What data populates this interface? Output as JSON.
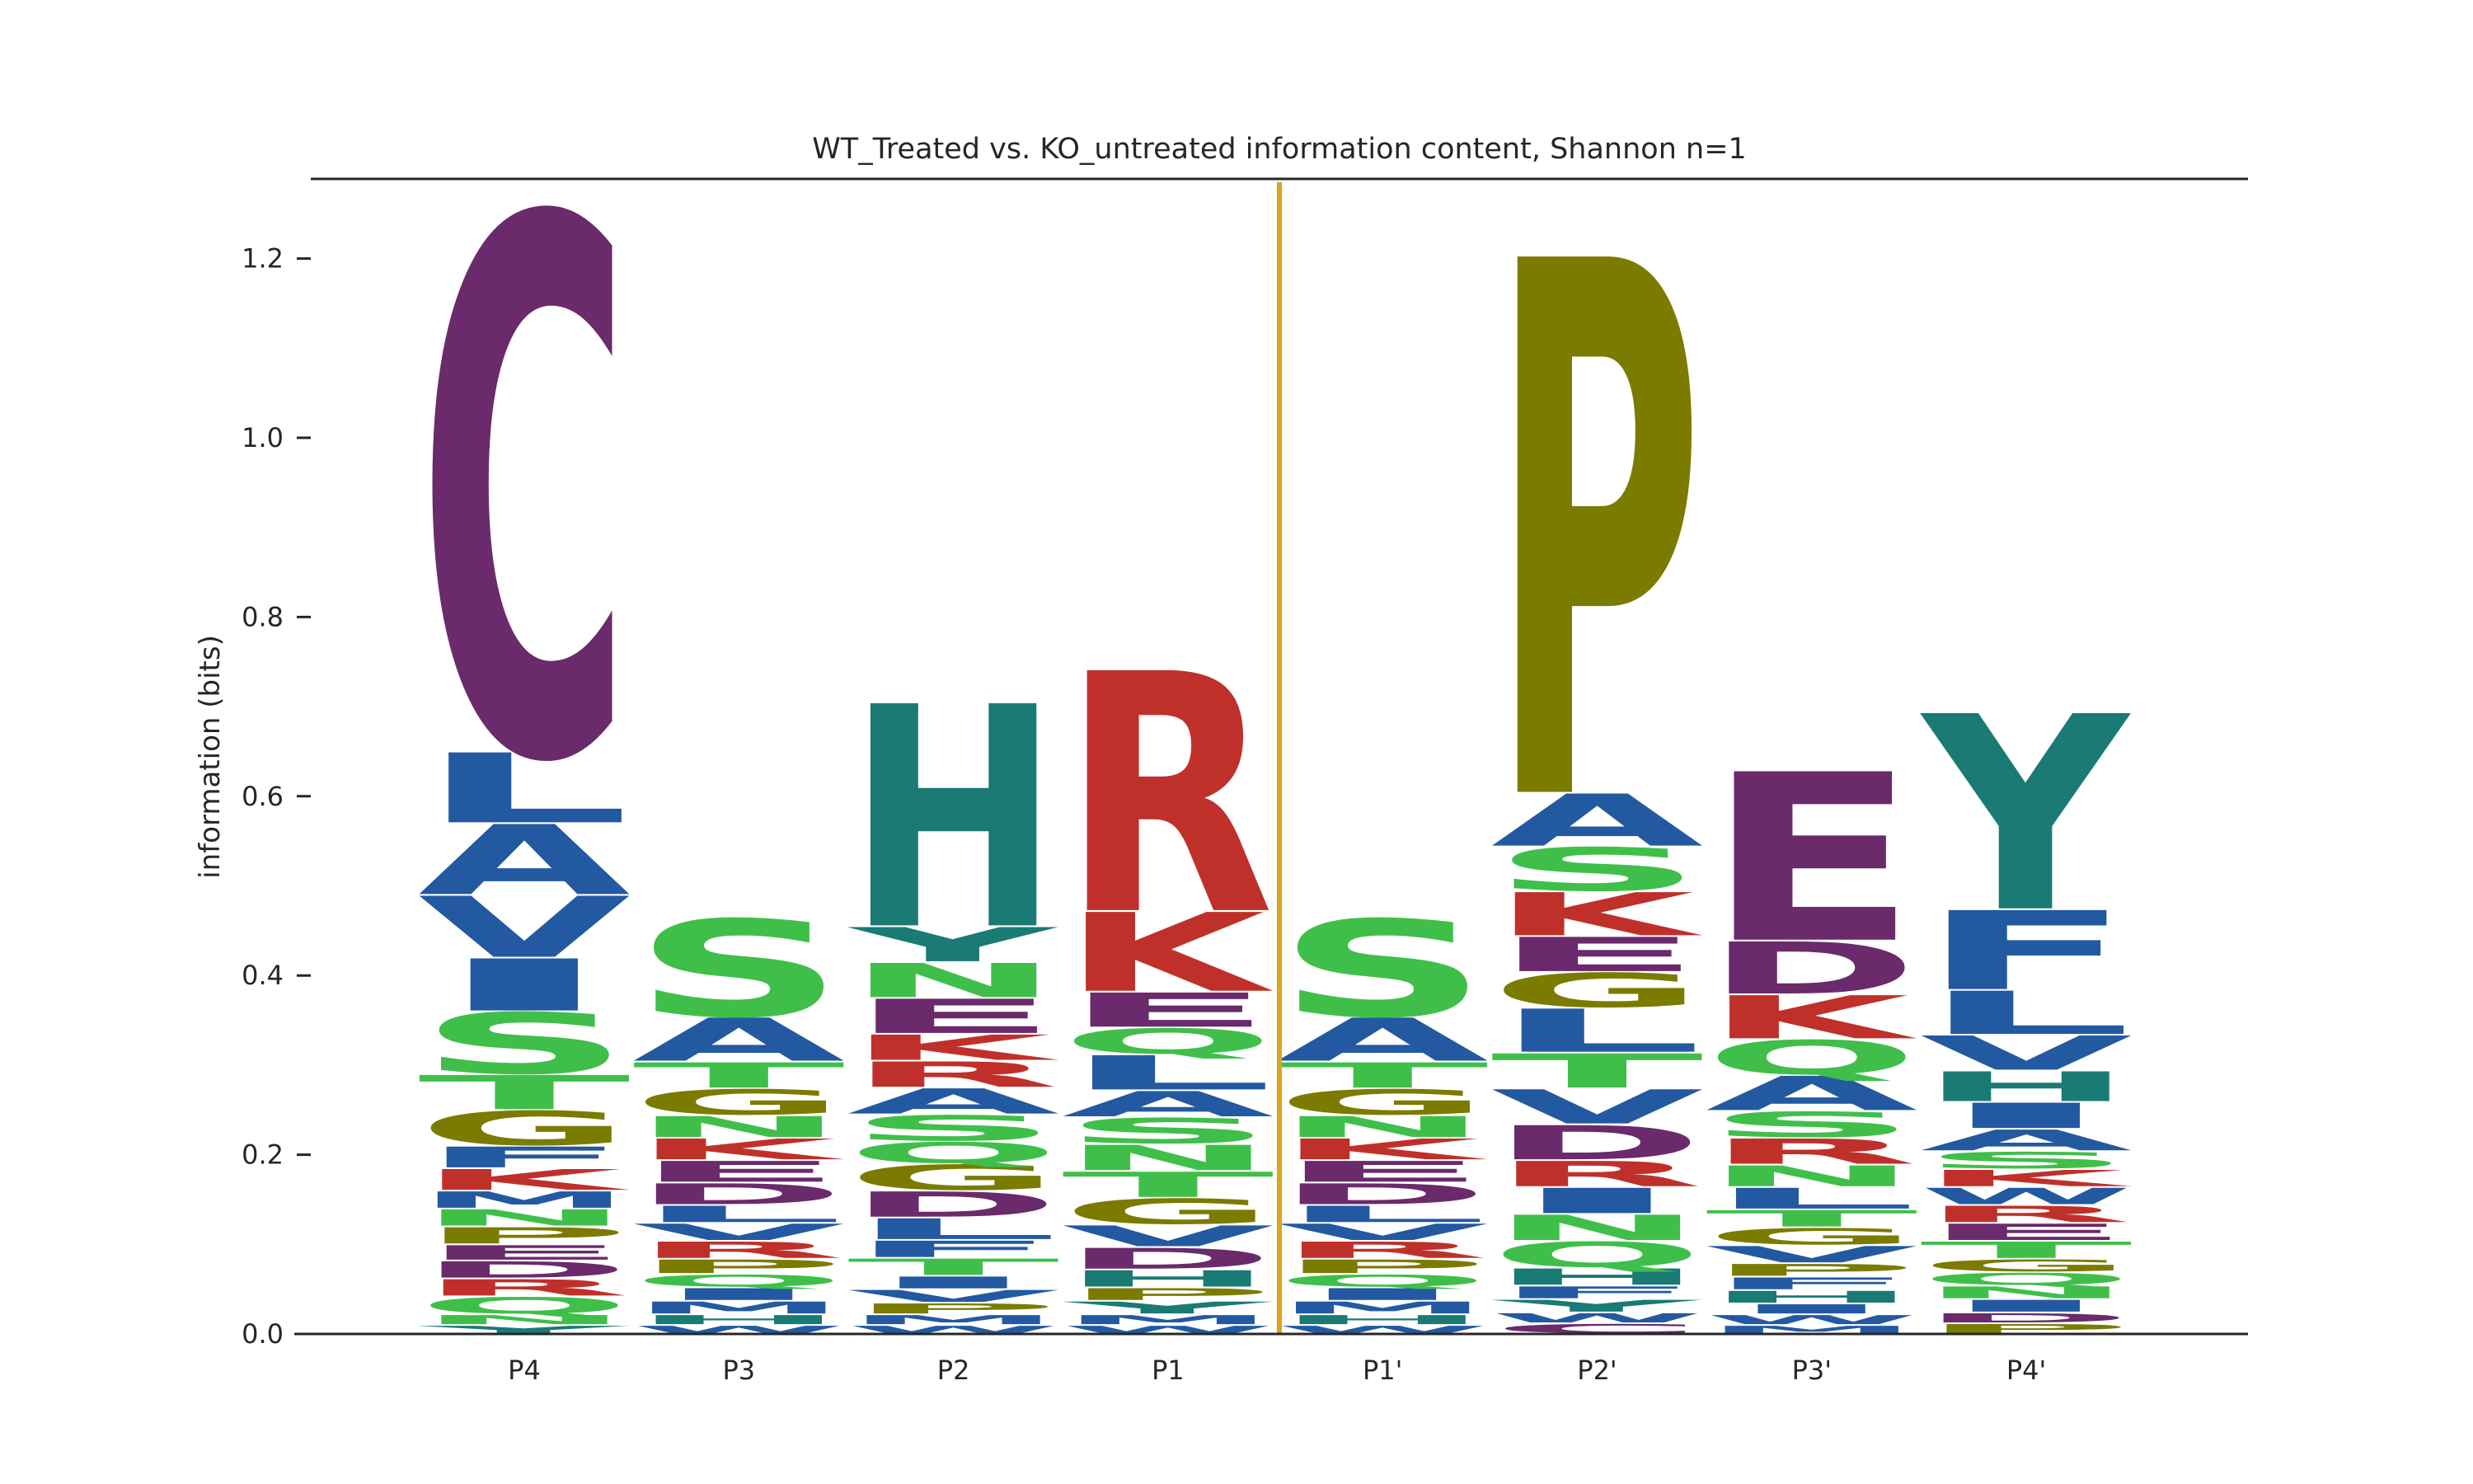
{
  "chart_data": {
    "type": "sequence-logo",
    "title": "WT_Treated vs. KO_untreated information content, Shannon n=1",
    "xlabel": "",
    "ylabel": "information (bits)",
    "ylim": [
      0,
      1.28
    ],
    "yticks": [
      "0.0",
      "0.2",
      "0.4",
      "0.6",
      "0.8",
      "1.0",
      "1.2"
    ],
    "ytick_values": [
      0,
      0.2,
      0.4,
      0.6,
      0.8,
      1.0,
      1.2
    ],
    "categories": [
      "P4",
      "P3",
      "P2",
      "P1",
      "P1'",
      "P2'",
      "P3'",
      "P4'"
    ],
    "cleavage_site_after": "P1",
    "grid": false,
    "colors": {
      "purple": "#6a2a6c",
      "blue": "#2359a1",
      "green": "#3fbf4a",
      "olive": "#7b7b00",
      "red": "#c0302a",
      "teal": "#1a7a74",
      "cleavage_line": "#daa520",
      "axis": "#262626"
    },
    "positions": [
      {
        "label": "P4",
        "letters": [
          {
            "aa": "Y",
            "bits": 0.01,
            "color": "teal"
          },
          {
            "aa": "N",
            "bits": 0.012,
            "color": "green"
          },
          {
            "aa": "Q",
            "bits": 0.02,
            "color": "green"
          },
          {
            "aa": "R",
            "bits": 0.02,
            "color": "red"
          },
          {
            "aa": "D",
            "bits": 0.02,
            "color": "purple"
          },
          {
            "aa": "E",
            "bits": 0.018,
            "color": "purple"
          },
          {
            "aa": "P",
            "bits": 0.02,
            "color": "olive"
          },
          {
            "aa": "N",
            "bits": 0.02,
            "color": "green"
          },
          {
            "aa": "M",
            "bits": 0.02,
            "color": "blue"
          },
          {
            "aa": "K",
            "bits": 0.025,
            "color": "red"
          },
          {
            "aa": "F",
            "bits": 0.025,
            "color": "blue"
          },
          {
            "aa": "G",
            "bits": 0.04,
            "color": "olive"
          },
          {
            "aa": "T",
            "bits": 0.04,
            "color": "green"
          },
          {
            "aa": "S",
            "bits": 0.07,
            "color": "green"
          },
          {
            "aa": "I",
            "bits": 0.06,
            "color": "blue"
          },
          {
            "aa": "V",
            "bits": 0.07,
            "color": "blue"
          },
          {
            "aa": "A",
            "bits": 0.08,
            "color": "blue"
          },
          {
            "aa": "L",
            "bits": 0.08,
            "color": "blue"
          },
          {
            "aa": "C",
            "bits": 0.6,
            "color": "purple"
          }
        ]
      },
      {
        "label": "P3",
        "letters": [
          {
            "aa": "W",
            "bits": 0.01,
            "color": "blue"
          },
          {
            "aa": "H",
            "bits": 0.012,
            "color": "teal"
          },
          {
            "aa": "M",
            "bits": 0.015,
            "color": "blue"
          },
          {
            "aa": "I",
            "bits": 0.015,
            "color": "blue"
          },
          {
            "aa": "Q",
            "bits": 0.015,
            "color": "green"
          },
          {
            "aa": "P",
            "bits": 0.017,
            "color": "olive"
          },
          {
            "aa": "R",
            "bits": 0.02,
            "color": "red"
          },
          {
            "aa": "V",
            "bits": 0.02,
            "color": "blue"
          },
          {
            "aa": "L",
            "bits": 0.02,
            "color": "blue"
          },
          {
            "aa": "D",
            "bits": 0.025,
            "color": "purple"
          },
          {
            "aa": "E",
            "bits": 0.025,
            "color": "purple"
          },
          {
            "aa": "K",
            "bits": 0.025,
            "color": "red"
          },
          {
            "aa": "N",
            "bits": 0.025,
            "color": "green"
          },
          {
            "aa": "G",
            "bits": 0.03,
            "color": "olive"
          },
          {
            "aa": "T",
            "bits": 0.03,
            "color": "green"
          },
          {
            "aa": "A",
            "bits": 0.05,
            "color": "blue"
          },
          {
            "aa": "S",
            "bits": 0.11,
            "color": "green"
          }
        ]
      },
      {
        "label": "P2",
        "letters": [
          {
            "aa": "W",
            "bits": 0.01,
            "color": "blue"
          },
          {
            "aa": "M",
            "bits": 0.012,
            "color": "blue"
          },
          {
            "aa": "P",
            "bits": 0.013,
            "color": "olive"
          },
          {
            "aa": "V",
            "bits": 0.015,
            "color": "blue"
          },
          {
            "aa": "I",
            "bits": 0.015,
            "color": "blue"
          },
          {
            "aa": "T",
            "bits": 0.02,
            "color": "green"
          },
          {
            "aa": "F",
            "bits": 0.02,
            "color": "blue"
          },
          {
            "aa": "L",
            "bits": 0.025,
            "color": "blue"
          },
          {
            "aa": "D",
            "bits": 0.03,
            "color": "purple"
          },
          {
            "aa": "G",
            "bits": 0.03,
            "color": "olive"
          },
          {
            "aa": "Q",
            "bits": 0.025,
            "color": "green"
          },
          {
            "aa": "S",
            "bits": 0.03,
            "color": "green"
          },
          {
            "aa": "A",
            "bits": 0.03,
            "color": "blue"
          },
          {
            "aa": "R",
            "bits": 0.03,
            "color": "red"
          },
          {
            "aa": "K",
            "bits": 0.03,
            "color": "red"
          },
          {
            "aa": "E",
            "bits": 0.04,
            "color": "purple"
          },
          {
            "aa": "N",
            "bits": 0.04,
            "color": "green"
          },
          {
            "aa": "Y",
            "bits": 0.04,
            "color": "teal"
          },
          {
            "aa": "H",
            "bits": 0.25,
            "color": "teal"
          }
        ]
      },
      {
        "label": "P1",
        "letters": [
          {
            "aa": "W",
            "bits": 0.01,
            "color": "blue"
          },
          {
            "aa": "M",
            "bits": 0.012,
            "color": "blue"
          },
          {
            "aa": "Y",
            "bits": 0.015,
            "color": "teal"
          },
          {
            "aa": "P",
            "bits": 0.015,
            "color": "olive"
          },
          {
            "aa": "H",
            "bits": 0.02,
            "color": "teal"
          },
          {
            "aa": "D",
            "bits": 0.025,
            "color": "purple"
          },
          {
            "aa": "V",
            "bits": 0.025,
            "color": "blue"
          },
          {
            "aa": "G",
            "bits": 0.03,
            "color": "olive"
          },
          {
            "aa": "T",
            "bits": 0.03,
            "color": "green"
          },
          {
            "aa": "N",
            "bits": 0.03,
            "color": "green"
          },
          {
            "aa": "S",
            "bits": 0.03,
            "color": "green"
          },
          {
            "aa": "A",
            "bits": 0.03,
            "color": "blue"
          },
          {
            "aa": "L",
            "bits": 0.04,
            "color": "blue"
          },
          {
            "aa": "Q",
            "bits": 0.03,
            "color": "green"
          },
          {
            "aa": "E",
            "bits": 0.04,
            "color": "purple"
          },
          {
            "aa": "K",
            "bits": 0.09,
            "color": "red"
          },
          {
            "aa": "R",
            "bits": 0.27,
            "color": "red"
          }
        ]
      },
      {
        "label": "P1'",
        "letters": [
          {
            "aa": "W",
            "bits": 0.01,
            "color": "blue"
          },
          {
            "aa": "H",
            "bits": 0.012,
            "color": "teal"
          },
          {
            "aa": "M",
            "bits": 0.015,
            "color": "blue"
          },
          {
            "aa": "I",
            "bits": 0.015,
            "color": "blue"
          },
          {
            "aa": "Q",
            "bits": 0.015,
            "color": "green"
          },
          {
            "aa": "P",
            "bits": 0.017,
            "color": "olive"
          },
          {
            "aa": "R",
            "bits": 0.02,
            "color": "red"
          },
          {
            "aa": "V",
            "bits": 0.02,
            "color": "blue"
          },
          {
            "aa": "L",
            "bits": 0.02,
            "color": "blue"
          },
          {
            "aa": "D",
            "bits": 0.025,
            "color": "purple"
          },
          {
            "aa": "E",
            "bits": 0.025,
            "color": "purple"
          },
          {
            "aa": "K",
            "bits": 0.025,
            "color": "red"
          },
          {
            "aa": "N",
            "bits": 0.025,
            "color": "green"
          },
          {
            "aa": "G",
            "bits": 0.03,
            "color": "olive"
          },
          {
            "aa": "T",
            "bits": 0.03,
            "color": "green"
          },
          {
            "aa": "A",
            "bits": 0.05,
            "color": "blue"
          },
          {
            "aa": "S",
            "bits": 0.11,
            "color": "green"
          }
        ]
      },
      {
        "label": "P2'",
        "letters": [
          {
            "aa": "C",
            "bits": 0.012,
            "color": "purple"
          },
          {
            "aa": "W",
            "bits": 0.012,
            "color": "blue"
          },
          {
            "aa": "Y",
            "bits": 0.015,
            "color": "teal"
          },
          {
            "aa": "F",
            "bits": 0.015,
            "color": "blue"
          },
          {
            "aa": "H",
            "bits": 0.02,
            "color": "teal"
          },
          {
            "aa": "Q",
            "bits": 0.03,
            "color": "green"
          },
          {
            "aa": "N",
            "bits": 0.03,
            "color": "green"
          },
          {
            "aa": "I",
            "bits": 0.03,
            "color": "blue"
          },
          {
            "aa": "R",
            "bits": 0.03,
            "color": "red"
          },
          {
            "aa": "D",
            "bits": 0.04,
            "color": "purple"
          },
          {
            "aa": "V",
            "bits": 0.04,
            "color": "blue"
          },
          {
            "aa": "T",
            "bits": 0.04,
            "color": "green"
          },
          {
            "aa": "L",
            "bits": 0.05,
            "color": "blue"
          },
          {
            "aa": "G",
            "bits": 0.04,
            "color": "olive"
          },
          {
            "aa": "E",
            "bits": 0.04,
            "color": "purple"
          },
          {
            "aa": "K",
            "bits": 0.05,
            "color": "red"
          },
          {
            "aa": "S",
            "bits": 0.05,
            "color": "green"
          },
          {
            "aa": "A",
            "bits": 0.06,
            "color": "blue"
          },
          {
            "aa": "P",
            "bits": 0.6,
            "color": "olive"
          }
        ]
      },
      {
        "label": "P3'",
        "letters": [
          {
            "aa": "M",
            "bits": 0.01,
            "color": "blue"
          },
          {
            "aa": "W",
            "bits": 0.012,
            "color": "blue"
          },
          {
            "aa": "I",
            "bits": 0.012,
            "color": "blue"
          },
          {
            "aa": "H",
            "bits": 0.015,
            "color": "teal"
          },
          {
            "aa": "F",
            "bits": 0.015,
            "color": "blue"
          },
          {
            "aa": "P",
            "bits": 0.015,
            "color": "olive"
          },
          {
            "aa": "V",
            "bits": 0.02,
            "color": "blue"
          },
          {
            "aa": "G",
            "bits": 0.02,
            "color": "olive"
          },
          {
            "aa": "T",
            "bits": 0.02,
            "color": "green"
          },
          {
            "aa": "L",
            "bits": 0.025,
            "color": "blue"
          },
          {
            "aa": "N",
            "bits": 0.025,
            "color": "green"
          },
          {
            "aa": "R",
            "bits": 0.03,
            "color": "red"
          },
          {
            "aa": "S",
            "bits": 0.03,
            "color": "green"
          },
          {
            "aa": "A",
            "bits": 0.04,
            "color": "blue"
          },
          {
            "aa": "Q",
            "bits": 0.04,
            "color": "green"
          },
          {
            "aa": "K",
            "bits": 0.05,
            "color": "red"
          },
          {
            "aa": "D",
            "bits": 0.06,
            "color": "purple"
          },
          {
            "aa": "E",
            "bits": 0.19,
            "color": "purple"
          }
        ]
      },
      {
        "label": "P4'",
        "letters": [
          {
            "aa": "P",
            "bits": 0.012,
            "color": "olive"
          },
          {
            "aa": "D",
            "bits": 0.012,
            "color": "purple"
          },
          {
            "aa": "I",
            "bits": 0.015,
            "color": "blue"
          },
          {
            "aa": "N",
            "bits": 0.015,
            "color": "green"
          },
          {
            "aa": "Q",
            "bits": 0.015,
            "color": "green"
          },
          {
            "aa": "G",
            "bits": 0.015,
            "color": "olive"
          },
          {
            "aa": "T",
            "bits": 0.02,
            "color": "green"
          },
          {
            "aa": "E",
            "bits": 0.02,
            "color": "purple"
          },
          {
            "aa": "R",
            "bits": 0.02,
            "color": "red"
          },
          {
            "aa": "W",
            "bits": 0.02,
            "color": "blue"
          },
          {
            "aa": "K",
            "bits": 0.02,
            "color": "red"
          },
          {
            "aa": "S",
            "bits": 0.02,
            "color": "green"
          },
          {
            "aa": "A",
            "bits": 0.025,
            "color": "blue"
          },
          {
            "aa": "I",
            "bits": 0.03,
            "color": "blue"
          },
          {
            "aa": "H",
            "bits": 0.035,
            "color": "teal"
          },
          {
            "aa": "V",
            "bits": 0.04,
            "color": "blue"
          },
          {
            "aa": "L",
            "bits": 0.05,
            "color": "blue"
          },
          {
            "aa": "F",
            "bits": 0.09,
            "color": "blue"
          },
          {
            "aa": "Y",
            "bits": 0.22,
            "color": "teal"
          }
        ]
      }
    ]
  }
}
